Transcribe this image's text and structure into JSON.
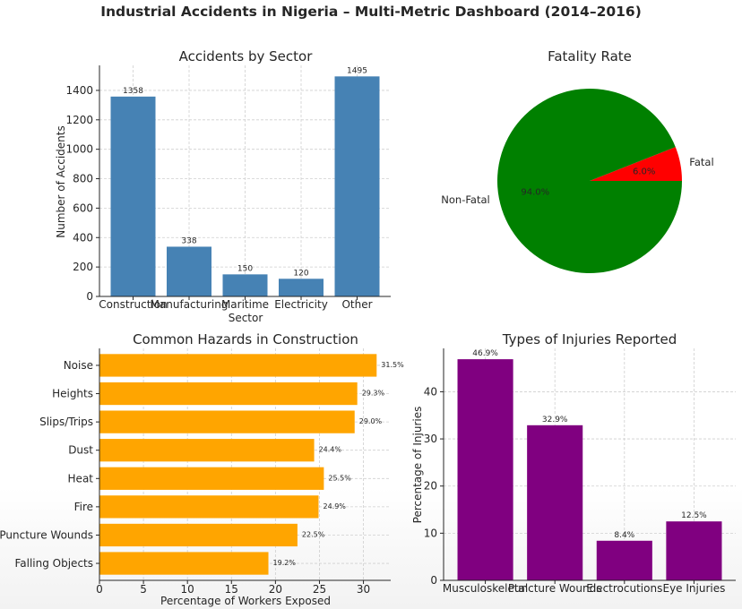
{
  "suptitle": "Industrial Accidents in Nigeria – Multi-Metric Dashboard (2014–2016)",
  "chart_data": [
    {
      "type": "bar",
      "title": "Accidents by Sector",
      "xlabel": "Sector",
      "ylabel": "Number of Accidents",
      "categories": [
        "Construction",
        "Manufacturing",
        "Maritime",
        "Electricity",
        "Other"
      ],
      "values": [
        1358,
        338,
        150,
        120,
        1495
      ],
      "data_labels": [
        "1358",
        "338",
        "150",
        "120",
        "1495"
      ],
      "ylim": [
        0,
        1570
      ],
      "yticks": [
        0,
        200,
        400,
        600,
        800,
        1000,
        1200,
        1400
      ],
      "color": "#4682b4",
      "grid": true
    },
    {
      "type": "pie",
      "title": "Fatality Rate",
      "labels": [
        "Fatal",
        "Non-Fatal"
      ],
      "values": [
        6.0,
        94.0
      ],
      "pct_labels": [
        "6.0%",
        "94.0%"
      ],
      "colors": [
        "#ff0000",
        "#008000"
      ]
    },
    {
      "type": "bar",
      "orientation": "horizontal",
      "title": "Common Hazards in Construction",
      "xlabel": "Percentage of Workers Exposed",
      "ylabel": "",
      "categories": [
        "Falling Objects",
        "Puncture Wounds",
        "Fire",
        "Heat",
        "Dust",
        "Slips/Trips",
        "Heights",
        "Noise"
      ],
      "values": [
        19.2,
        22.5,
        24.9,
        25.5,
        24.4,
        29.0,
        29.3,
        31.5
      ],
      "data_labels": [
        "19.2%",
        "22.5%",
        "24.9%",
        "25.5%",
        "24.4%",
        "29.0%",
        "29.3%",
        "31.5%"
      ],
      "xlim": [
        0,
        33.1
      ],
      "xticks": [
        0,
        5,
        10,
        15,
        20,
        25,
        30
      ],
      "color": "#ffa500",
      "grid": true
    },
    {
      "type": "bar",
      "title": "Types of Injuries Reported",
      "xlabel": "",
      "ylabel": "Percentage of Injuries",
      "categories": [
        "Musculoskeletal",
        "Puncture Wounds",
        "Electrocutions",
        "Eye Injuries"
      ],
      "values": [
        46.9,
        32.9,
        8.4,
        12.5
      ],
      "data_labels": [
        "46.9%",
        "32.9%",
        "8.4%",
        "12.5%"
      ],
      "ylim": [
        0,
        49.2
      ],
      "yticks": [
        0,
        10,
        20,
        30,
        40
      ],
      "color": "#800080",
      "grid": true
    }
  ]
}
